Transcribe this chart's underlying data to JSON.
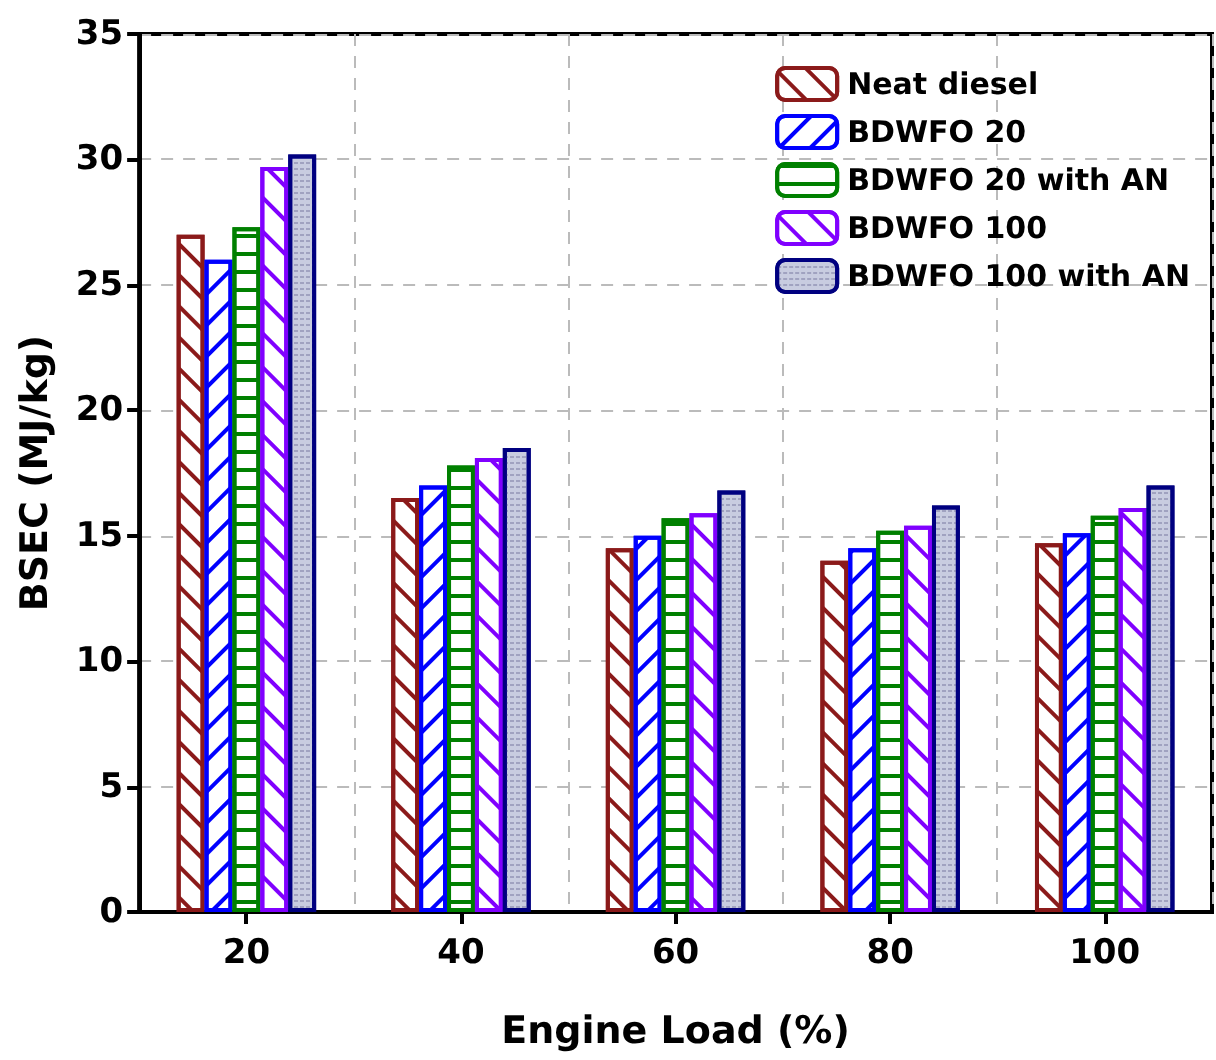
{
  "chart_data": {
    "type": "bar",
    "xlabel": "Engine Load (%)",
    "ylabel": "BSEC (MJ/kg)",
    "categories": [
      "20",
      "40",
      "60",
      "80",
      "100"
    ],
    "series": [
      {
        "name": "Neat diesel",
        "color": "#8b1a1a",
        "values": [
          27.0,
          16.5,
          14.5,
          14.0,
          14.7
        ]
      },
      {
        "name": "BDWFO 20",
        "color": "#0000ff",
        "values": [
          26.0,
          17.0,
          15.0,
          14.5,
          15.1
        ]
      },
      {
        "name": "BDWFO 20 with AN",
        "color": "#008000",
        "values": [
          27.3,
          17.8,
          15.7,
          15.2,
          15.8
        ]
      },
      {
        "name": "BDWFO 100",
        "color": "#8000ff",
        "values": [
          29.7,
          18.1,
          15.9,
          15.4,
          16.1
        ]
      },
      {
        "name": "BDWFO 100 with AN",
        "color": "#000080",
        "values": [
          30.2,
          18.5,
          16.8,
          16.2,
          17.0
        ]
      }
    ],
    "ylim": [
      0,
      35
    ],
    "yticks": [
      0,
      5,
      10,
      15,
      20,
      25,
      30,
      35
    ],
    "grid": true,
    "legend": "top right"
  }
}
